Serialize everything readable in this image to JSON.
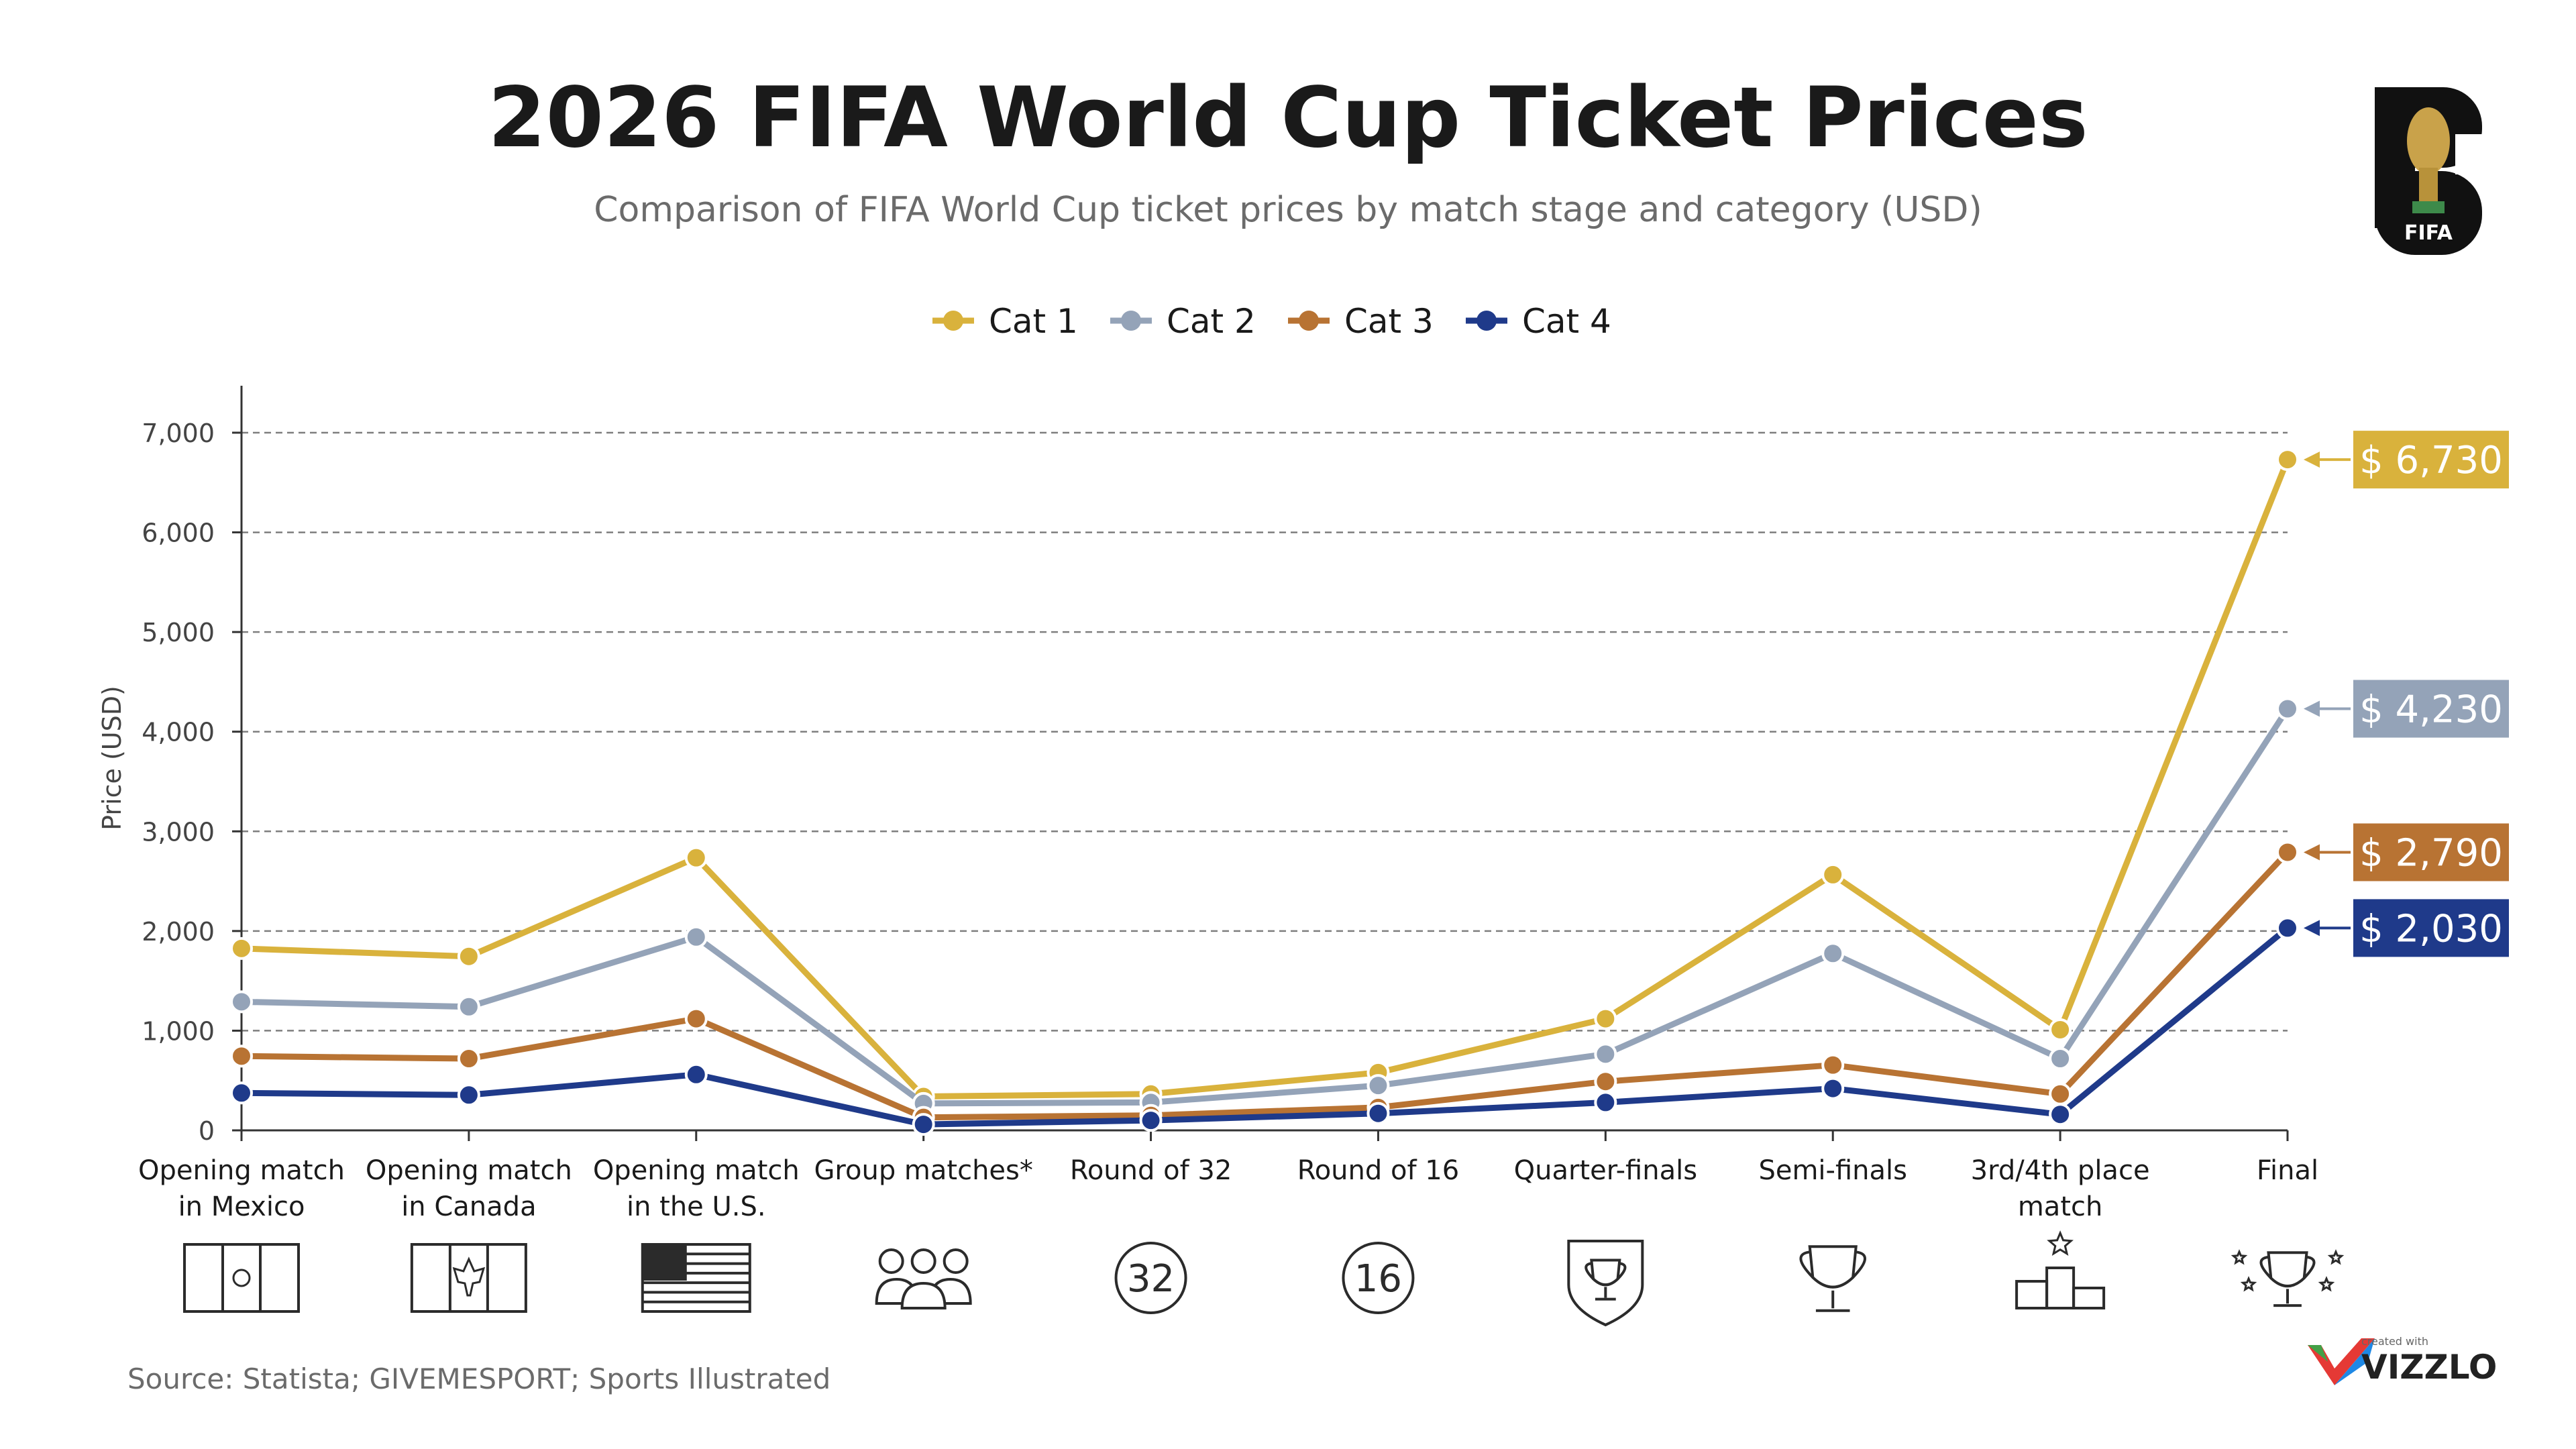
{
  "header": {
    "title": "2026 FIFA World Cup Ticket Prices",
    "subtitle": "Comparison of FIFA World Cup ticket prices by match stage and category (USD)"
  },
  "logo": {
    "badge_text": "FIFA",
    "digits": "26"
  },
  "footer": {
    "source": "Source: Statista; GIVEMESPORT; Sports Illustrated",
    "brand_small": "created with",
    "brand": "VIZZLO"
  },
  "colors": {
    "cat1": "#D9B23C",
    "cat2": "#94A3B8",
    "cat3": "#B87333",
    "cat4": "#1F3A8A",
    "grid": "#7f7f7f",
    "axis": "#333333",
    "icon": "#2b2b2b"
  },
  "chart_data": {
    "type": "line",
    "title": "2026 FIFA World Cup Ticket Prices",
    "subtitle": "Comparison of FIFA World Cup ticket prices by match stage and category (USD)",
    "ylabel": "Price (USD)",
    "xlabel": "",
    "ylim": [
      0,
      7000
    ],
    "yticks": [
      0,
      1000,
      2000,
      3000,
      4000,
      5000,
      6000,
      7000
    ],
    "ytick_labels": [
      "0",
      "1,000",
      "2,000",
      "3,000",
      "4,000",
      "5,000",
      "6,000",
      "7,000"
    ],
    "grid": "horizontal dashed",
    "legend": "top-center",
    "categories": [
      "Opening match in Mexico",
      "Opening match in Canada",
      "Opening match in the U.S.",
      "Group matches*",
      "Round of 32",
      "Round of 16",
      "Quarter-finals",
      "Semi-finals",
      "3rd/4th place match",
      "Final"
    ],
    "category_lines": [
      [
        "Opening match",
        "in Mexico"
      ],
      [
        "Opening match",
        "in Canada"
      ],
      [
        "Opening match",
        "in the U.S."
      ],
      [
        "Group matches*"
      ],
      [
        "Round of 32"
      ],
      [
        "Round of 16"
      ],
      [
        "Quarter-finals"
      ],
      [
        "Semi-finals"
      ],
      [
        "3rd/4th place",
        "match"
      ],
      [
        "Final"
      ]
    ],
    "category_icons": [
      "mexico-flag-icon",
      "canada-flag-icon",
      "usa-flag-icon",
      "group-people-icon",
      "round-32-icon",
      "round-16-icon",
      "trophy-shield-icon",
      "trophy-icon",
      "podium-icon",
      "trophy-stars-icon"
    ],
    "icon_numbers": {
      "round-32-icon": "32",
      "round-16-icon": "16"
    },
    "series": [
      {
        "name": "Cat 1",
        "color": "#D9B23C",
        "values": [
          1825,
          1745,
          2735,
          340,
          365,
          580,
          1120,
          2565,
          1010,
          6730
        ],
        "end_label": "$ 6,730"
      },
      {
        "name": "Cat 2",
        "color": "#94A3B8",
        "values": [
          1290,
          1240,
          1940,
          270,
          280,
          450,
          765,
          1775,
          720,
          4230
        ],
        "end_label": "$ 4,230"
      },
      {
        "name": "Cat 3",
        "color": "#B87333",
        "values": [
          745,
          720,
          1120,
          130,
          150,
          230,
          490,
          655,
          365,
          2790
        ],
        "end_label": "$ 2,790"
      },
      {
        "name": "Cat 4",
        "color": "#1F3A8A",
        "values": [
          375,
          355,
          560,
          60,
          100,
          170,
          280,
          420,
          160,
          2030
        ],
        "end_label": "$ 2,030"
      }
    ]
  }
}
